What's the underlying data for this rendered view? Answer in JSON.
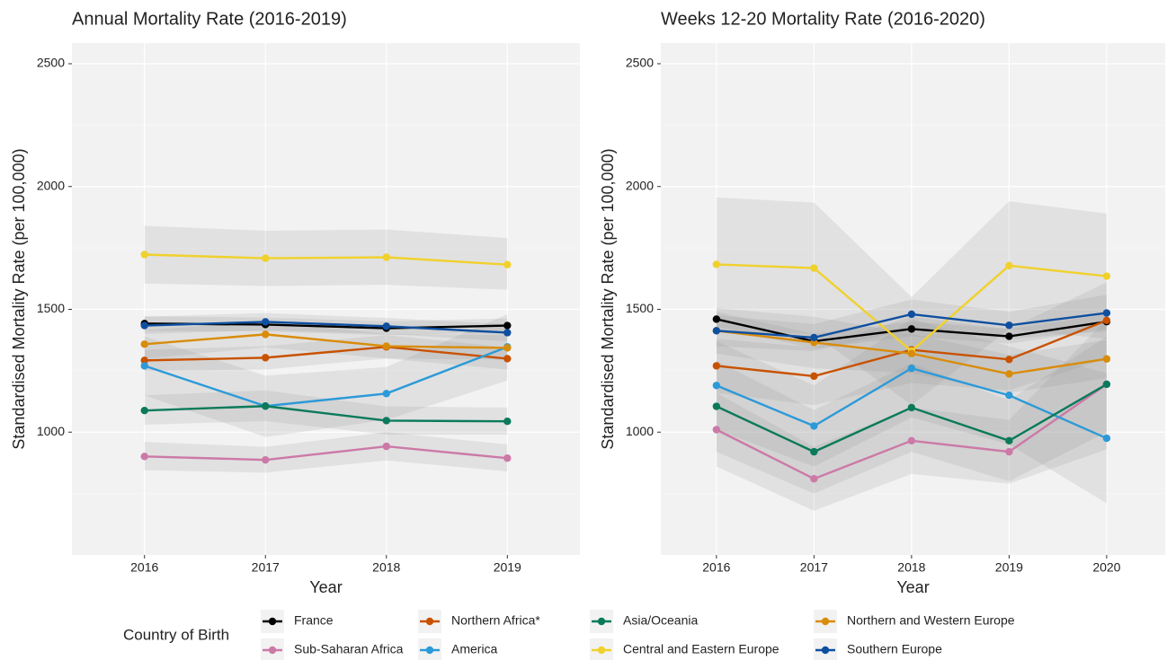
{
  "chart_data": [
    {
      "type": "line",
      "title": "Annual Mortality Rate (2016-2019)",
      "xlabel": "Year",
      "ylabel": "Standardised Mortality Rate (per 100,000)",
      "x": [
        2016,
        2017,
        2018,
        2019
      ],
      "xlim": [
        2015.4,
        2019.6
      ],
      "xticks": [
        2016,
        2017,
        2018,
        2019
      ],
      "ylim": [
        500,
        2584
      ],
      "yticks": [
        1000,
        1500,
        2000,
        2500
      ],
      "minor_yticks": [
        750,
        1250,
        1750,
        2250
      ],
      "grid": true,
      "series": [
        {
          "name": "France",
          "color": "#000000",
          "values": [
            1442,
            1438,
            1423,
            1434
          ],
          "ci_lower": [
            1412,
            1410,
            1395,
            1405
          ],
          "ci_upper": [
            1472,
            1466,
            1451,
            1463
          ]
        },
        {
          "name": "Sub-Saharan Africa",
          "color": "#cc79a7",
          "values": [
            901,
            887,
            942,
            894
          ],
          "ci_lower": [
            845,
            835,
            885,
            840
          ],
          "ci_upper": [
            960,
            940,
            1000,
            950
          ]
        },
        {
          "name": "Northern Africa*",
          "color": "#c85200",
          "values": [
            1292,
            1303,
            1347,
            1299
          ],
          "ci_lower": [
            1250,
            1255,
            1300,
            1255
          ],
          "ci_upper": [
            1335,
            1350,
            1395,
            1345
          ]
        },
        {
          "name": "America",
          "color": "#2c9ad8",
          "values": [
            1270,
            1106,
            1157,
            1347
          ],
          "ci_lower": [
            1150,
            980,
            1050,
            1210
          ],
          "ci_upper": [
            1390,
            1230,
            1265,
            1480
          ]
        },
        {
          "name": "Asia/Oceania",
          "color": "#0b7a5a",
          "values": [
            1088,
            1106,
            1047,
            1044
          ],
          "ci_lower": [
            1030,
            1045,
            990,
            990
          ],
          "ci_upper": [
            1150,
            1170,
            1105,
            1100
          ]
        },
        {
          "name": "Central and Eastern Europe",
          "color": "#f0d12c",
          "values": [
            1723,
            1708,
            1712,
            1682
          ],
          "ci_lower": [
            1605,
            1595,
            1600,
            1580
          ],
          "ci_upper": [
            1840,
            1820,
            1825,
            1790
          ]
        },
        {
          "name": "Northern and Western Europe",
          "color": "#d98c0a",
          "values": [
            1358,
            1398,
            1350,
            1343
          ],
          "ci_lower": [
            1300,
            1345,
            1300,
            1295
          ],
          "ci_upper": [
            1415,
            1450,
            1400,
            1395
          ]
        },
        {
          "name": "Southern Europe",
          "color": "#0f4f9f",
          "values": [
            1434,
            1449,
            1431,
            1405
          ],
          "ci_lower": [
            1400,
            1415,
            1400,
            1370
          ],
          "ci_upper": [
            1470,
            1485,
            1465,
            1440
          ]
        }
      ]
    },
    {
      "type": "line",
      "title": "Weeks 12-20 Mortality Rate (2016-2020)",
      "xlabel": "Year",
      "ylabel": "Standardised Mortality Rate (per 100,000)",
      "x": [
        2016,
        2017,
        2018,
        2019,
        2020
      ],
      "xlim": [
        2015.43,
        2020.6
      ],
      "xticks": [
        2016,
        2017,
        2018,
        2019,
        2020
      ],
      "ylim": [
        500,
        2584
      ],
      "yticks": [
        1000,
        1500,
        2000,
        2500
      ],
      "minor_yticks": [
        750,
        1250,
        1750,
        2250
      ],
      "grid": true,
      "series": [
        {
          "name": "France",
          "color": "#000000",
          "values": [
            1460,
            1370,
            1420,
            1390,
            1450
          ],
          "ci_lower": [
            1430,
            1340,
            1390,
            1360,
            1420
          ],
          "ci_upper": [
            1490,
            1400,
            1450,
            1420,
            1480
          ]
        },
        {
          "name": "Sub-Saharan Africa",
          "color": "#cc79a7",
          "values": [
            1010,
            810,
            965,
            920,
            1195
          ],
          "ci_lower": [
            860,
            680,
            830,
            790,
            930
          ],
          "ci_upper": [
            1160,
            940,
            1100,
            1050,
            1460
          ]
        },
        {
          "name": "Northern Africa*",
          "color": "#c85200",
          "values": [
            1270,
            1228,
            1335,
            1296,
            1455
          ],
          "ci_lower": [
            1160,
            1110,
            1200,
            1170,
            1300
          ],
          "ci_upper": [
            1380,
            1345,
            1470,
            1420,
            1610
          ]
        },
        {
          "name": "America",
          "color": "#2c9ad8",
          "values": [
            1190,
            1025,
            1260,
            1150,
            975
          ],
          "ci_lower": [
            1010,
            860,
            1060,
            950,
            710
          ],
          "ci_upper": [
            1370,
            1190,
            1460,
            1350,
            1240
          ]
        },
        {
          "name": "Asia/Oceania",
          "color": "#0b7a5a",
          "values": [
            1105,
            920,
            1100,
            965,
            1195
          ],
          "ci_lower": [
            920,
            750,
            920,
            800,
            1000
          ],
          "ci_upper": [
            1290,
            1090,
            1280,
            1130,
            1390
          ]
        },
        {
          "name": "Central and Eastern Europe",
          "color": "#f0d12c",
          "values": [
            1683,
            1668,
            1330,
            1678,
            1635
          ],
          "ci_lower": [
            1410,
            1400,
            1110,
            1420,
            1380
          ],
          "ci_upper": [
            1955,
            1935,
            1550,
            1940,
            1890
          ]
        },
        {
          "name": "Northern and Western Europe",
          "color": "#d98c0a",
          "values": [
            1413,
            1365,
            1320,
            1237,
            1298
          ],
          "ci_lower": [
            1320,
            1260,
            1240,
            1160,
            1220
          ],
          "ci_upper": [
            1505,
            1470,
            1400,
            1315,
            1375
          ]
        },
        {
          "name": "Southern Europe",
          "color": "#0f4f9f",
          "values": [
            1413,
            1385,
            1480,
            1435,
            1485
          ],
          "ci_lower": [
            1350,
            1330,
            1420,
            1380,
            1410
          ],
          "ci_upper": [
            1475,
            1440,
            1540,
            1490,
            1560
          ]
        }
      ]
    }
  ],
  "legend": {
    "title": "Country of Birth",
    "position": "bottom"
  }
}
